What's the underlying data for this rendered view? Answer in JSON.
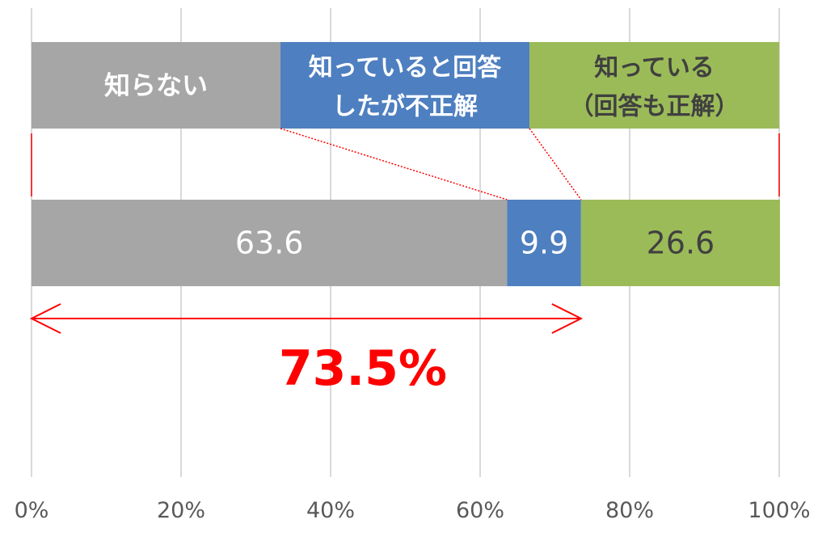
{
  "chart_data": {
    "type": "bar",
    "orientation": "horizontal",
    "stacked": true,
    "xlim": [
      0,
      100
    ],
    "x_ticks": [
      "0%",
      "20%",
      "40%",
      "60%",
      "80%",
      "100%"
    ],
    "grid": "vertical",
    "bars": [
      {
        "segments": [
          {
            "label": "知らない",
            "value": 33.3,
            "color": "#a6a6a6",
            "text_color": "#ffffff"
          },
          {
            "label": "知っていると回答したが不正解",
            "lines": [
              "知っていると回答",
              "したが不正解"
            ],
            "value": 33.3,
            "color": "#4e7fc0",
            "text_color": "#ffffff"
          },
          {
            "label": "知っている（回答も正解）",
            "lines": [
              "知っている",
              "（回答も正解）"
            ],
            "value": 33.4,
            "color": "#9bbb59",
            "text_color": "#404040"
          }
        ]
      },
      {
        "segments": [
          {
            "value": 63.6,
            "label": "63.6",
            "color": "#a6a6a6",
            "text_color": "#ffffff"
          },
          {
            "value": 9.9,
            "label": "9.9",
            "color": "#4e7fc0",
            "text_color": "#ffffff"
          },
          {
            "value": 26.6,
            "label": "26.6",
            "color": "#9bbb59",
            "text_color": "#404040"
          }
        ]
      }
    ],
    "annotation": {
      "text": "73.5%",
      "range": [
        0,
        73.5
      ],
      "color": "#ff0000"
    }
  }
}
